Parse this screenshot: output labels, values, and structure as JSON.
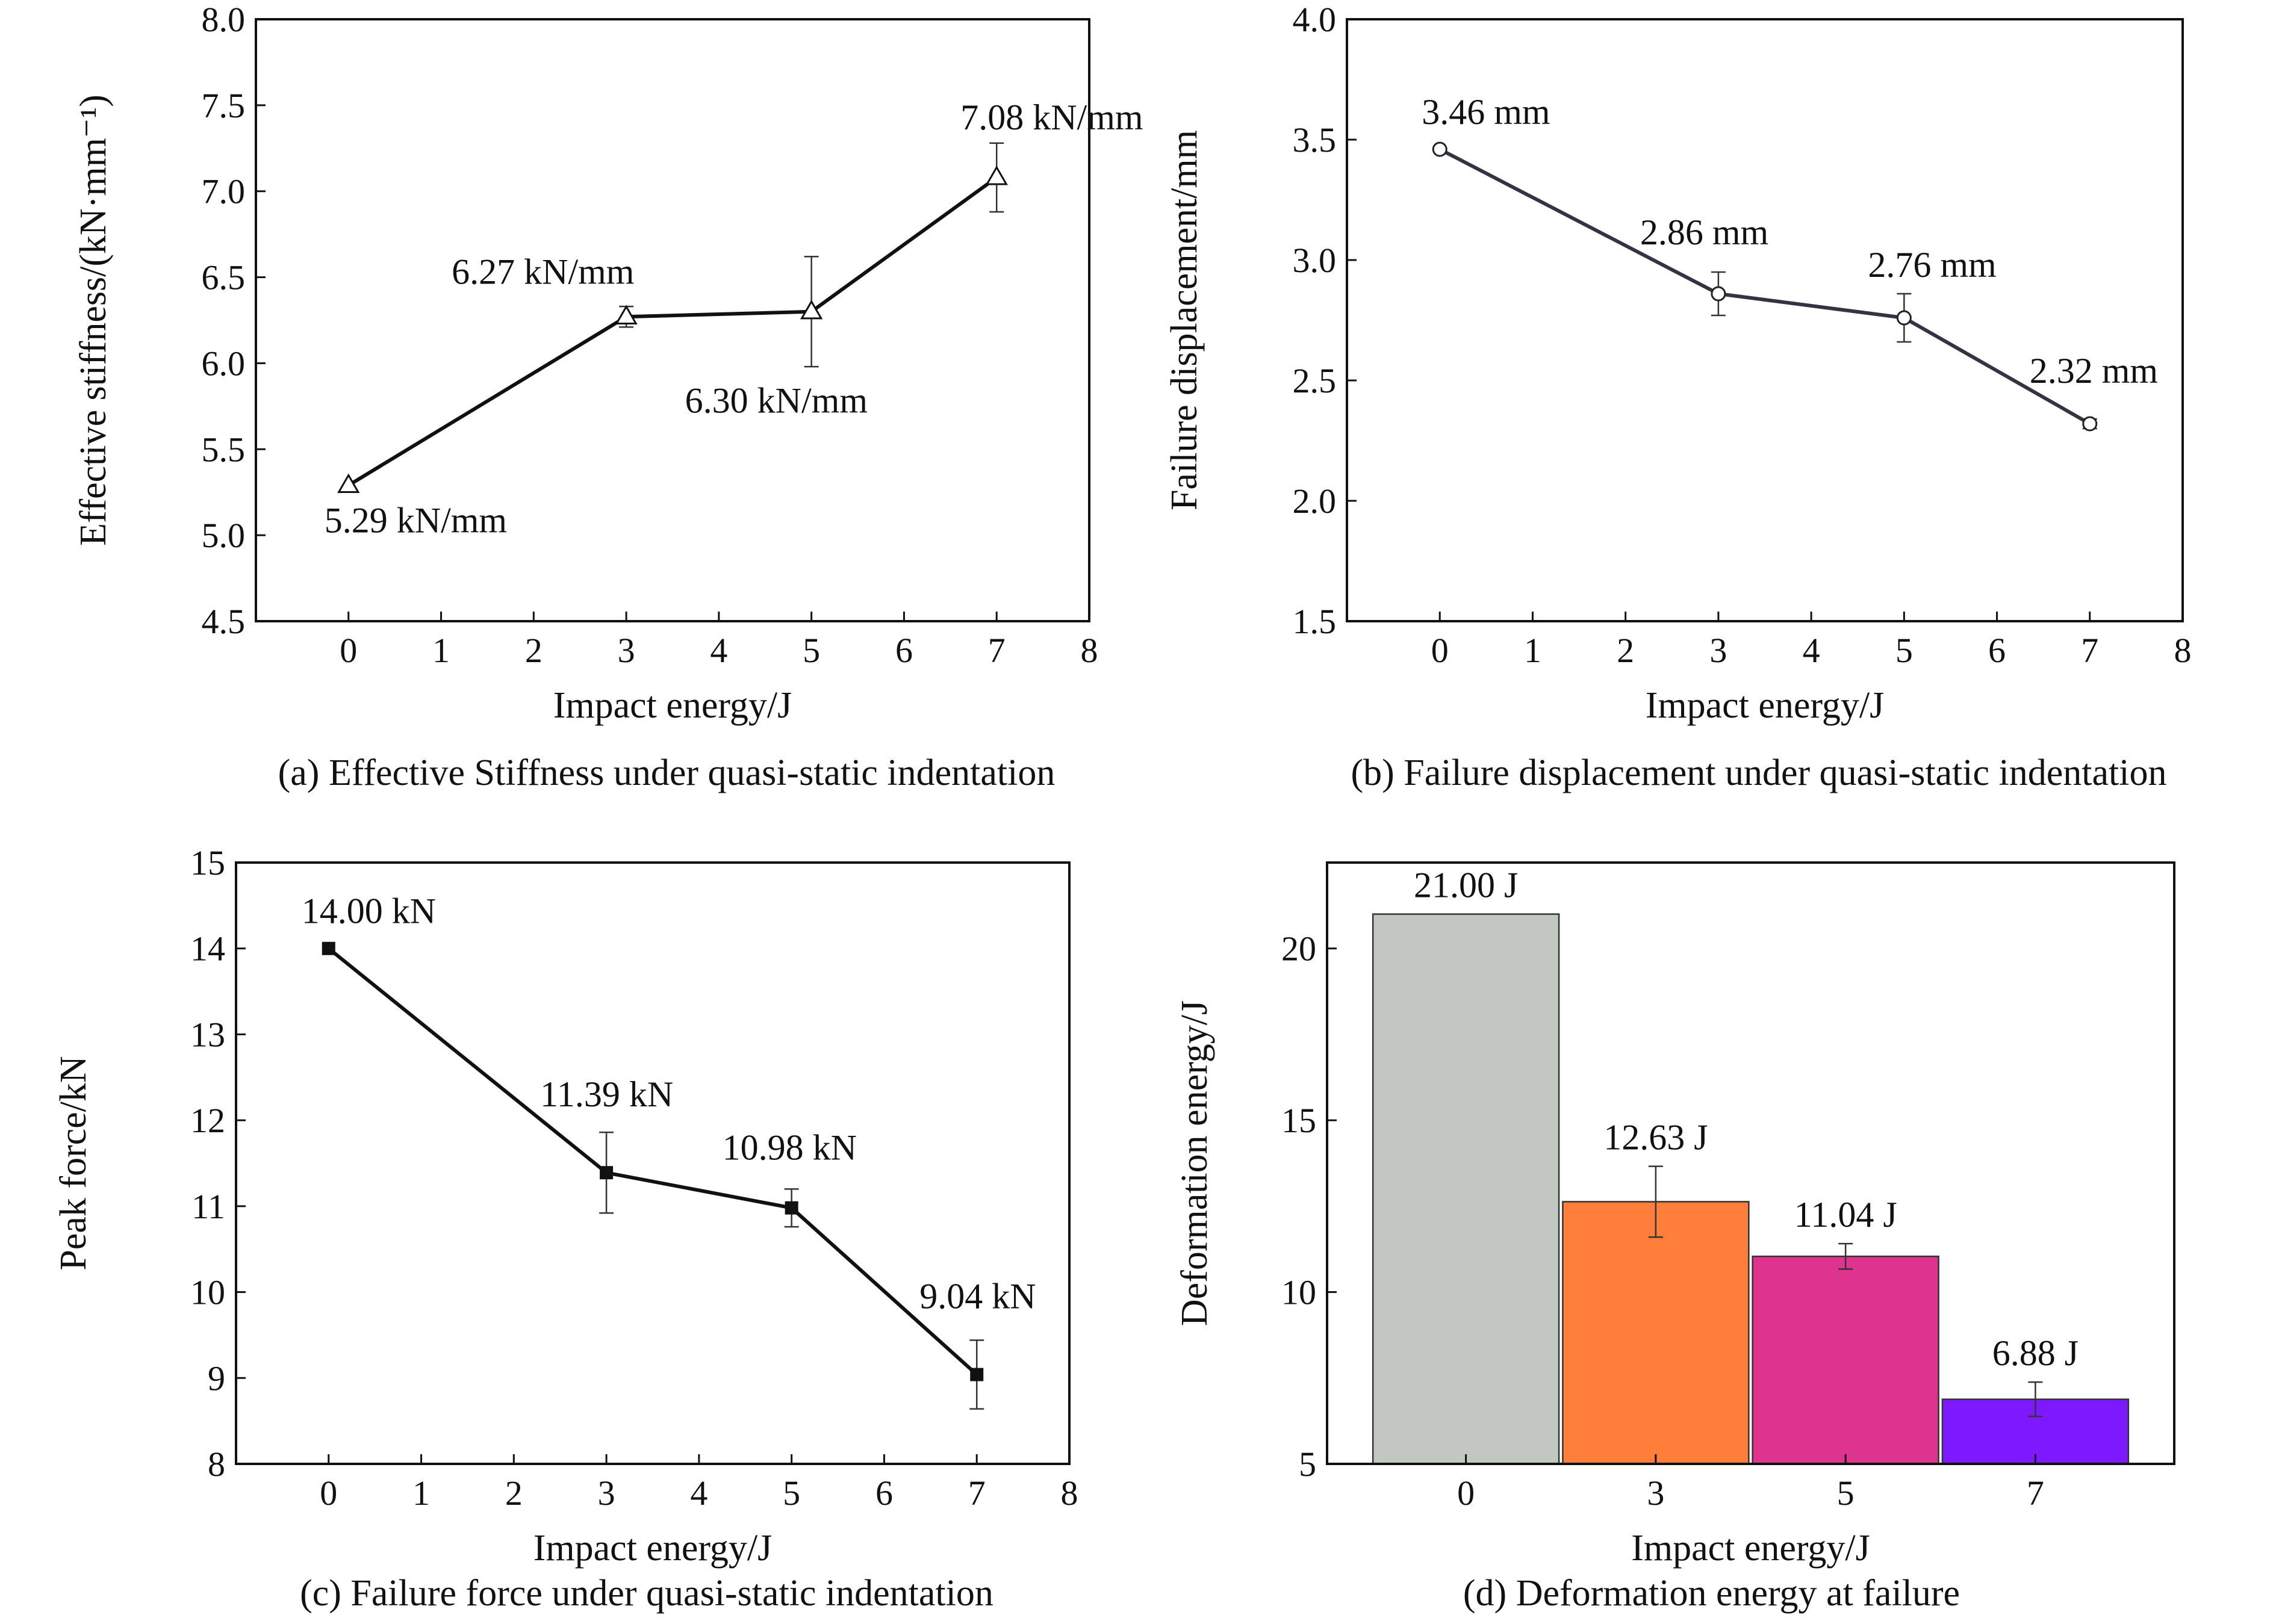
{
  "chart_data": [
    {
      "id": "a",
      "type": "line",
      "marker": "triangle",
      "caption": "(a) Effective Stiffness under quasi-static indentation",
      "xlabel": "Impact energy/J",
      "ylabel": "Effective stiffness/(kN·mm⁻¹)",
      "xlim": [
        -1,
        8
      ],
      "ylim": [
        4.5,
        8.0
      ],
      "xticks": [
        "0",
        "1",
        "2",
        "3",
        "4",
        "5",
        "6",
        "7",
        "8"
      ],
      "yticks": [
        "4.5",
        "5.0",
        "5.5",
        "6.0",
        "6.5",
        "7.0",
        "7.5",
        "8.0"
      ],
      "x": [
        0,
        3,
        5,
        7
      ],
      "y": [
        5.29,
        6.27,
        6.3,
        7.08
      ],
      "err": [
        0.0,
        0.06,
        0.32,
        0.2
      ],
      "labels": [
        "5.29 kN/mm",
        "6.27 kN/mm",
        "6.30 kN/mm",
        "7.08 kN/mm"
      ],
      "grid": false
    },
    {
      "id": "b",
      "type": "line",
      "marker": "circle",
      "caption": "(b) Failure displacement under quasi-static indentation",
      "xlabel": "Impact energy/J",
      "ylabel": "Failure displacement/mm",
      "xlim": [
        -1,
        8
      ],
      "ylim": [
        1.5,
        4.0
      ],
      "xticks": [
        "0",
        "1",
        "2",
        "3",
        "4",
        "5",
        "6",
        "7",
        "8"
      ],
      "yticks": [
        "1.5",
        "2.0",
        "2.5",
        "3.0",
        "3.5",
        "4.0"
      ],
      "x": [
        0,
        3,
        5,
        7
      ],
      "y": [
        3.46,
        2.86,
        2.76,
        2.32
      ],
      "err": [
        0.0,
        0.09,
        0.1,
        0.02
      ],
      "labels": [
        "3.46 mm",
        "2.86 mm",
        "2.76 mm",
        "2.32 mm"
      ],
      "grid": false
    },
    {
      "id": "c",
      "type": "line",
      "marker": "square",
      "caption": "(c) Failure force under quasi-static indentation",
      "xlabel": "Impact energy/J",
      "ylabel": "Peak force/kN",
      "xlim": [
        -1,
        8
      ],
      "ylim": [
        8,
        15
      ],
      "xticks": [
        "0",
        "1",
        "2",
        "3",
        "4",
        "5",
        "6",
        "7",
        "8"
      ],
      "yticks": [
        "8",
        "9",
        "10",
        "11",
        "12",
        "13",
        "14",
        "15"
      ],
      "x": [
        0,
        3,
        5,
        7
      ],
      "y": [
        14.0,
        11.39,
        10.98,
        9.04
      ],
      "err": [
        0.0,
        0.47,
        0.22,
        0.4
      ],
      "labels": [
        "14.00 kN",
        "11.39 kN",
        "10.98 kN",
        "9.04 kN"
      ],
      "grid": false
    },
    {
      "id": "d",
      "type": "bar",
      "caption": "(d) Deformation energy at failure",
      "xlabel": "Impact energy/J",
      "ylabel": "Deformation energy/J",
      "ylim": [
        5,
        22.5
      ],
      "yticks": [
        "5",
        "10",
        "15",
        "20"
      ],
      "categories": [
        "0",
        "3",
        "5",
        "7"
      ],
      "values": [
        21.0,
        12.63,
        11.04,
        6.88
      ],
      "err": [
        0.0,
        1.03,
        0.37,
        0.5
      ],
      "labels": [
        "21.00 J",
        "12.63 J",
        "11.04 J",
        "6.88 J"
      ],
      "colors": [
        "#c3c7c2",
        "#ff7f3a",
        "#de338e",
        "#7d18ff"
      ],
      "grid": false
    }
  ]
}
